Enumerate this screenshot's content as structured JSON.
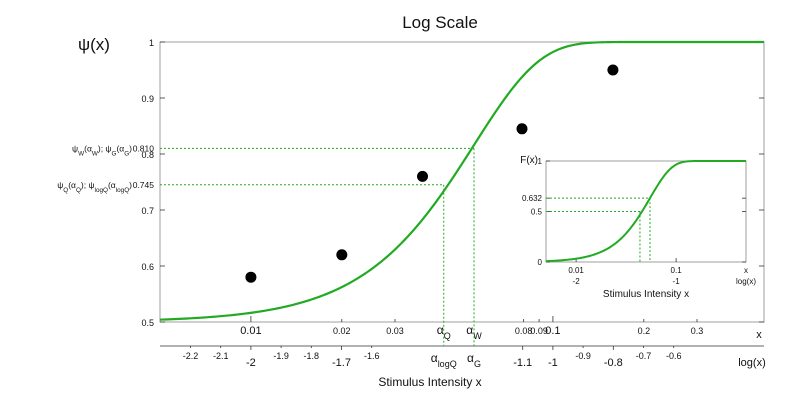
{
  "chart_data": {
    "type": "line",
    "title": "Log Scale",
    "ylabel": "ψ(x)",
    "xlabel": "Stimulus Intensity x",
    "xlabel_top_unit": "x",
    "xlabel_bottom_unit": "log(x)",
    "x_scale": "log10",
    "xlim": [
      0.005,
      0.5
    ],
    "ylim": [
      0.5,
      1.0
    ],
    "grid": false,
    "legend": "none",
    "y_ticks": [
      {
        "value": 0.5,
        "label": "0.5"
      },
      {
        "value": 0.6,
        "label": "0.6"
      },
      {
        "value": 0.7,
        "label": "0.7"
      },
      {
        "value": 0.8,
        "label": "0.8"
      },
      {
        "value": 0.9,
        "label": "0.9"
      },
      {
        "value": 1.0,
        "label": "1"
      }
    ],
    "x_ticks": [
      {
        "value": 0.01,
        "label": "0.01",
        "major": true
      },
      {
        "value": 0.02,
        "label": "0.02",
        "major": false
      },
      {
        "value": 0.03,
        "label": "0.03",
        "major": false
      },
      {
        "value": 0.08,
        "label": "0.08",
        "major": false
      },
      {
        "value": 0.09,
        "label": "0.09",
        "major": false
      },
      {
        "value": 0.1,
        "label": "0.1",
        "major": true
      },
      {
        "value": 0.2,
        "label": "0.2",
        "major": false
      },
      {
        "value": 0.3,
        "label": "0.3",
        "major": false
      }
    ],
    "logx_ticks": [
      {
        "value": -2.2,
        "label": "-2.2",
        "major": false
      },
      {
        "value": -2.1,
        "label": "-2.1",
        "major": false
      },
      {
        "value": -2.0,
        "label": "-2",
        "major": true
      },
      {
        "value": -1.9,
        "label": "-1.9",
        "major": false
      },
      {
        "value": -1.8,
        "label": "-1.8",
        "major": false
      },
      {
        "value": -1.7,
        "label": "-1.7",
        "major": true
      },
      {
        "value": -1.6,
        "label": "-1.6",
        "major": false
      },
      {
        "value": -1.1,
        "label": "-1.1",
        "major": true
      },
      {
        "value": -1.0,
        "label": "-1",
        "major": true
      },
      {
        "value": -0.9,
        "label": "-0.9",
        "major": false
      },
      {
        "value": -0.8,
        "label": "-0.8",
        "major": true
      },
      {
        "value": -0.7,
        "label": "-0.7",
        "major": false
      },
      {
        "value": -0.6,
        "label": "-0.6",
        "major": false
      }
    ],
    "curve": {
      "type": "weibull",
      "guess_rate": 0.5,
      "alpha": 0.0548,
      "beta": 2.0,
      "color": "#22aa22"
    },
    "points": [
      {
        "x": 0.01,
        "y": 0.58
      },
      {
        "x": 0.02,
        "y": 0.62
      },
      {
        "x": 0.037,
        "y": 0.76
      },
      {
        "x": 0.079,
        "y": 0.845
      },
      {
        "x": 0.158,
        "y": 0.95
      }
    ],
    "reference_lines": [
      {
        "y": 0.81,
        "y_label": "0.810",
        "y_caption_html": "ψ<sub>W</sub>(α<sub>W</sub>); ψ<sub>G</sub>(α<sub>G</sub>)",
        "x": 0.0548,
        "x_label_top": "α<sub>W</sub>",
        "x_label_bottom": "α<sub>G</sub>"
      },
      {
        "y": 0.745,
        "y_label": "0.745",
        "y_caption_html": "ψ<sub>Q</sub>(α<sub>Q</sub>); ψ<sub>logQ</sub>(α<sub>logQ</sub>)",
        "x": 0.0435,
        "x_label_top": "α<sub>Q</sub>",
        "x_label_bottom": "α<sub>logQ</sub>"
      }
    ],
    "inset": {
      "ylabel": "F(x)",
      "xlabel": "Stimulus Intensity x",
      "xlabel_top_unit": "x",
      "xlabel_bottom_unit": "log(x)",
      "ylim": [
        0,
        1
      ],
      "y_ticks": [
        {
          "value": 0,
          "label": "0"
        },
        {
          "value": 0.5,
          "label": "0.5"
        },
        {
          "value": 0.632,
          "label": "0.632"
        },
        {
          "value": 1,
          "label": "1"
        }
      ],
      "x_ticks": [
        {
          "value": 0.01,
          "label": "0.01"
        },
        {
          "value": 0.1,
          "label": "0.1"
        }
      ],
      "logx_ticks": [
        {
          "value": -2,
          "label": "-2"
        },
        {
          "value": -1,
          "label": "-1"
        }
      ],
      "ref_x": [
        0.0435,
        0.0548
      ],
      "ref_y": [
        0.5,
        0.632
      ]
    }
  }
}
